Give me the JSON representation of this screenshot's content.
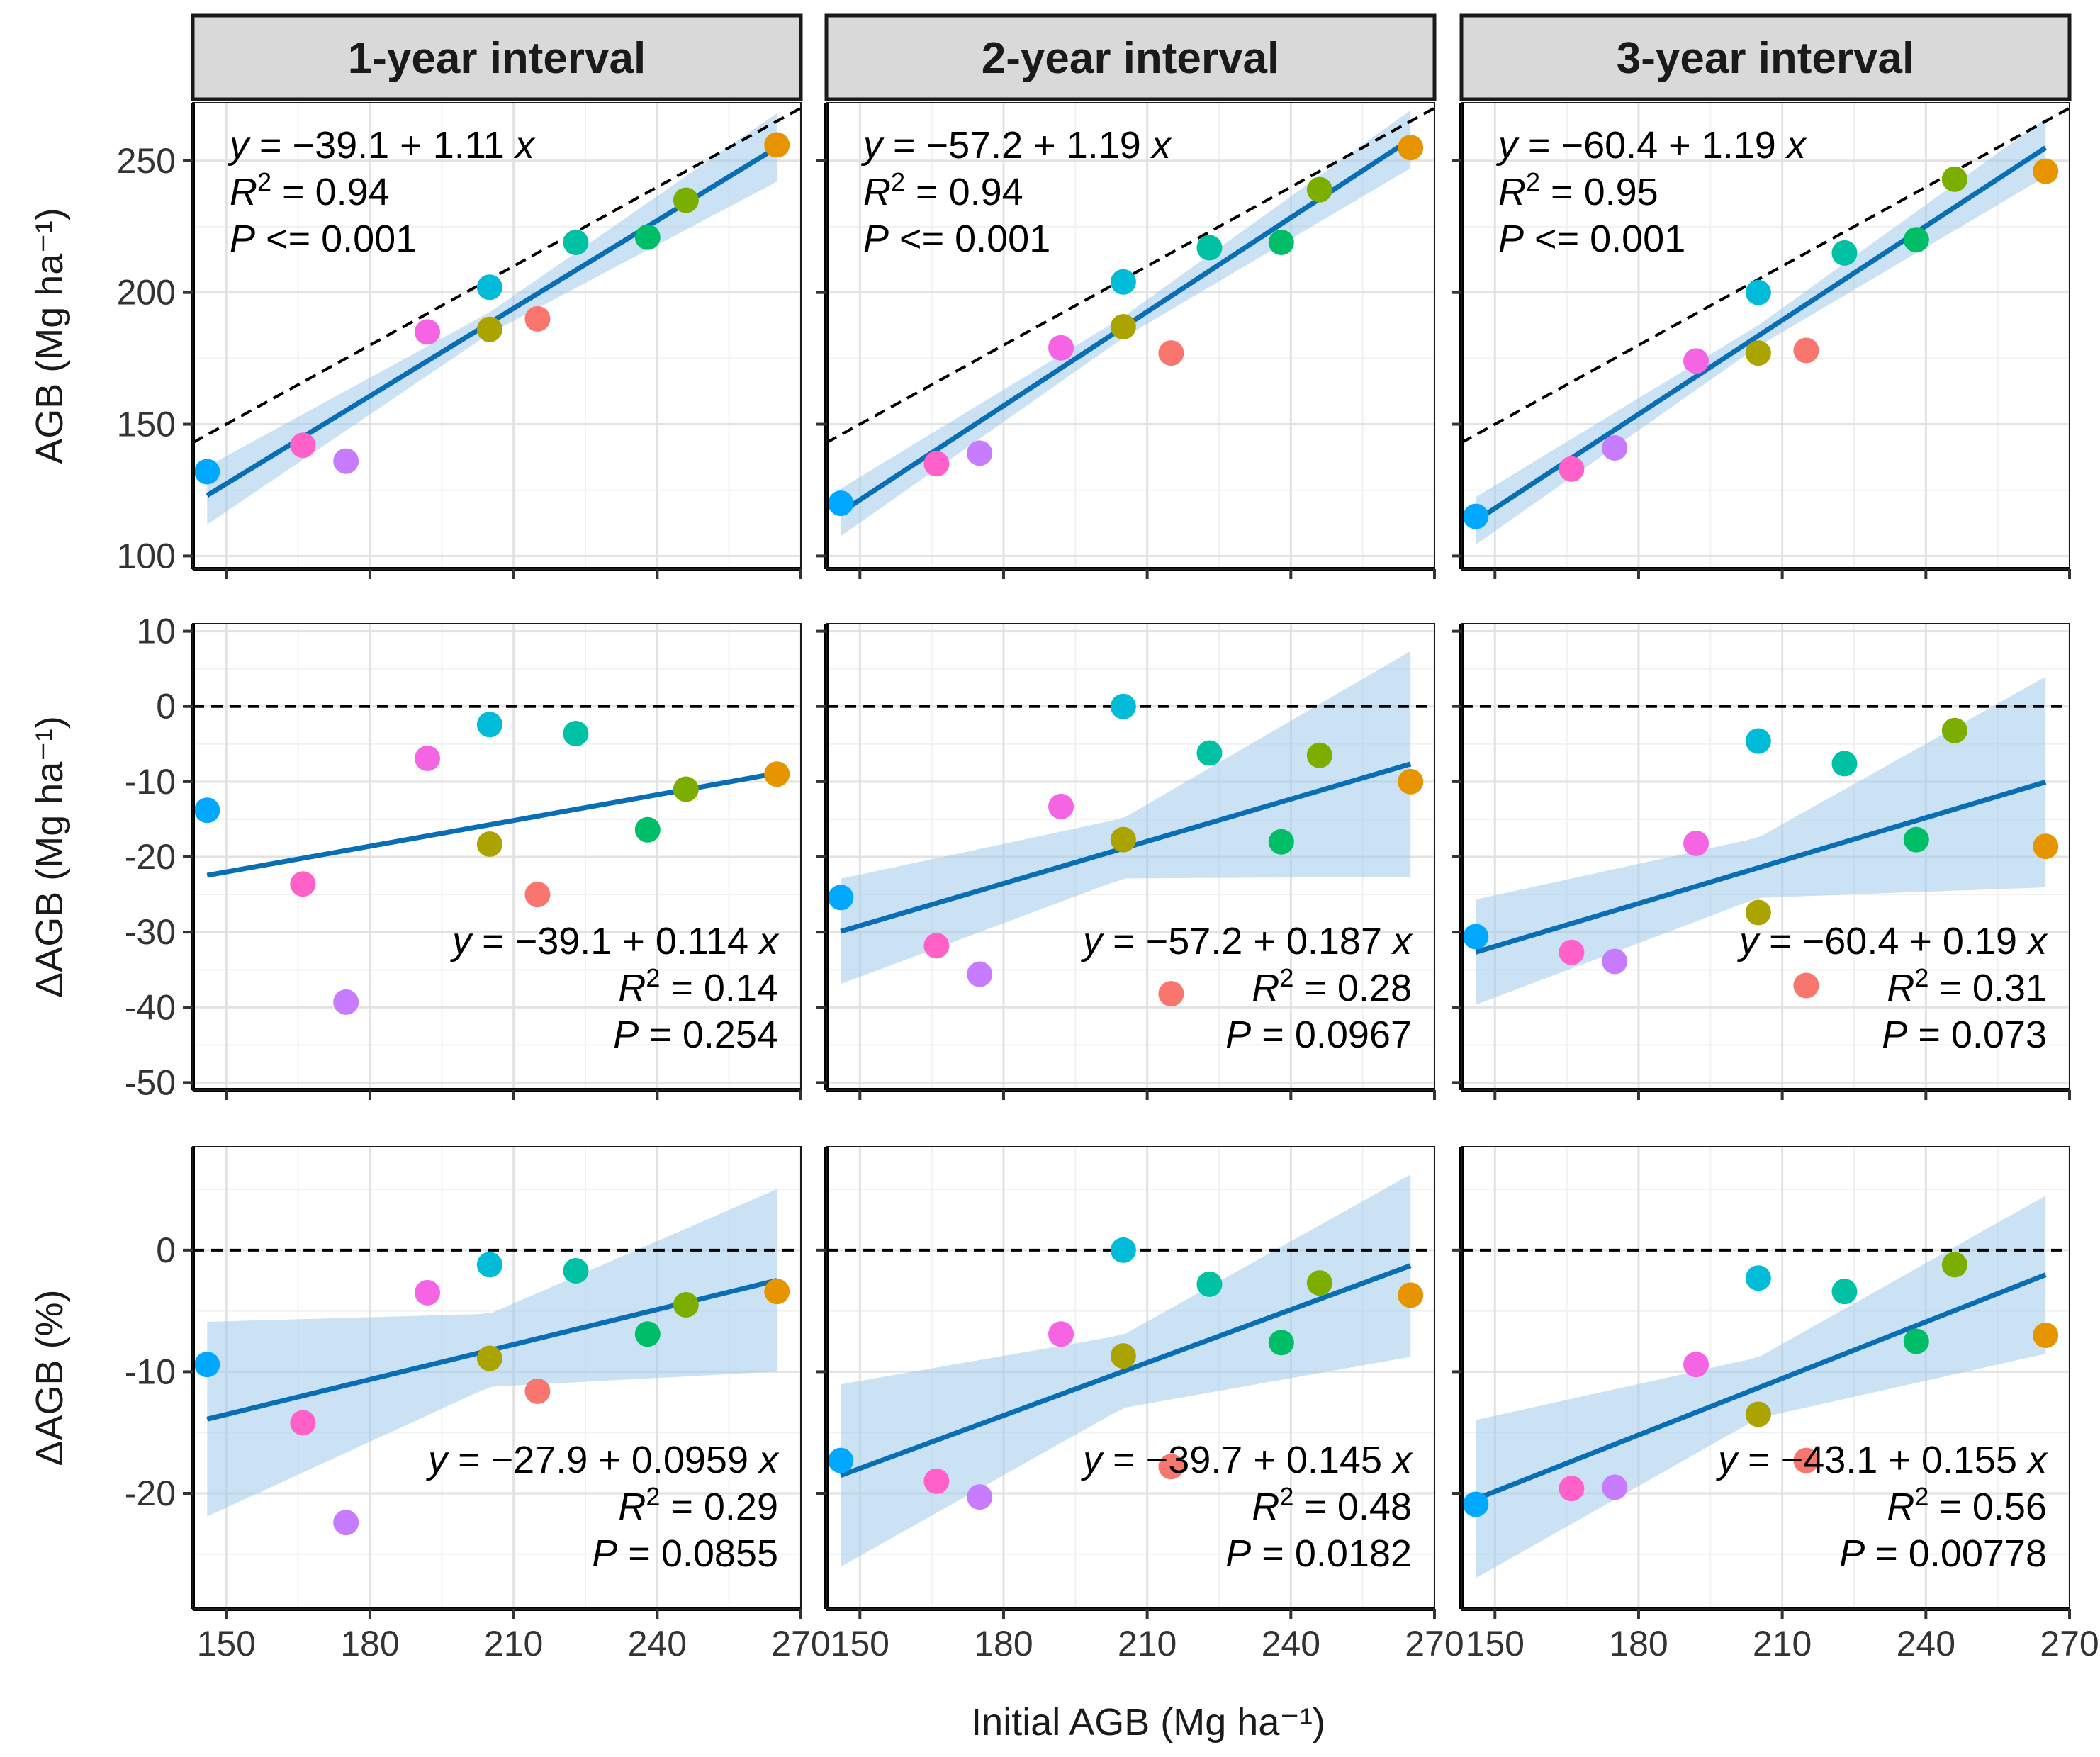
{
  "chart_data": {
    "type": "scatter",
    "layout": "facet grid, 3 rows x 3 columns",
    "facets": [
      "1-year interval",
      "2-year interval",
      "3-year interval"
    ],
    "xlabel": "Initial AGB (Mg ha⁻¹)",
    "xlim": [
      143,
      270
    ],
    "xticks": [
      150,
      180,
      210,
      240,
      270
    ],
    "x": [
      146,
      166,
      175,
      192,
      205,
      205,
      215,
      223,
      238,
      246,
      265
    ],
    "point_colors": [
      "#00A9FF",
      "#FF61C9",
      "#C77CFF",
      "#F564E3",
      "#00BCD8",
      "#ABA300",
      "#F8766D",
      "#00C1A3",
      "#00BE67",
      "#7CAE00",
      "#E69500"
    ],
    "fit_color": "#0A6EB4",
    "band_color": "#9ECAE9",
    "rows": [
      {
        "ylabel": "AGB (Mg ha⁻¹)",
        "ylim": [
          95,
          272
        ],
        "yticks": [
          100,
          150,
          200,
          250
        ],
        "reference_line": "1:1",
        "panels": [
          {
            "y": [
              132,
              142,
              136,
              185,
              202,
              186,
              190,
              219,
              221,
              235,
              256
            ],
            "intercept": -39.1,
            "slope": 1.11,
            "band": [
              [
                146,
                11,
                11
              ],
              [
                205,
                4,
                4
              ],
              [
                265,
                13,
                13
              ]
            ],
            "eq": "y = −39.1 + 1.11 x",
            "r2": "= 0.94",
            "p": "<= 0.001"
          },
          {
            "y": [
              120,
              135,
              139,
              179,
              204,
              187,
              177,
              217,
              219,
              239,
              255
            ],
            "intercept": -57.2,
            "slope": 1.19,
            "band": [
              [
                146,
                9,
                9
              ],
              [
                205,
                4,
                4
              ],
              [
                265,
                11,
                11
              ]
            ],
            "eq": "y = −57.2 + 1.19 x",
            "r2": "= 0.94",
            "p": "<= 0.001"
          },
          {
            "y": [
              115,
              133,
              141,
              174,
              200,
              177,
              178,
              215,
              220,
              243,
              246
            ],
            "intercept": -60.4,
            "slope": 1.19,
            "band": [
              [
                146,
                9,
                9
              ],
              [
                205,
                4,
                4
              ],
              [
                265,
                11,
                11
              ]
            ],
            "eq": "y = −60.4 + 1.19 x",
            "r2": "= 0.95",
            "p": "<= 0.001"
          }
        ]
      },
      {
        "ylabel": "ΔAGB (Mg ha⁻¹)",
        "ylim": [
          -51,
          11
        ],
        "yticks": [
          -50,
          -40,
          -30,
          -20,
          -10,
          0,
          10
        ],
        "reference_line": "y = 0",
        "panels": [
          {
            "y": [
              -13.8,
              -23.6,
              -39.3,
              -6.9,
              -2.4,
              -18.3,
              -25.0,
              -3.6,
              -16.4,
              -11.0,
              -9.0
            ],
            "intercept": -39.1,
            "slope": 0.114,
            "band": [],
            "eq": "y = −39.1 + 0.114 x",
            "r2": "= 0.14",
            "p": "= 0.254"
          },
          {
            "y": [
              -25.4,
              -31.8,
              -35.6,
              -13.3,
              0.0,
              -17.7,
              -38.2,
              -6.2,
              -18.0,
              -6.5,
              -10.0
            ],
            "intercept": -57.2,
            "slope": 0.187,
            "band": [
              [
                146,
                7,
                7
              ],
              [
                205,
                4,
                4
              ],
              [
                265,
                15,
                15
              ]
            ],
            "eq": "y = −57.2 + 0.187 x",
            "r2": "= 0.28",
            "p": "= 0.0967"
          },
          {
            "y": [
              -30.6,
              -32.7,
              -33.9,
              -18.2,
              -4.6,
              -27.4,
              -37.1,
              -7.6,
              -17.7,
              -3.2,
              -18.6
            ],
            "intercept": -60.4,
            "slope": 0.19,
            "band": [
              [
                146,
                7,
                7
              ],
              [
                205,
                4,
                4
              ],
              [
                265,
                14,
                14
              ]
            ],
            "eq": "y = −60.4 + 0.19 x",
            "r2": "= 0.31",
            "p": "= 0.073"
          }
        ]
      },
      {
        "ylabel": "ΔAGB (%)",
        "ylim": [
          -29.5,
          8.5
        ],
        "yticks": [
          -20,
          -10,
          0
        ],
        "reference_line": "y = 0",
        "panels": [
          {
            "y": [
              -9.4,
              -14.2,
              -22.4,
              -3.5,
              -1.2,
              -8.9,
              -11.6,
              -1.7,
              -6.9,
              -4.5,
              -3.4
            ],
            "intercept": -27.9,
            "slope": 0.0959,
            "band": [
              [
                146,
                8,
                8
              ],
              [
                205,
                3,
                3
              ],
              [
                265,
                7.5,
                7.5
              ]
            ],
            "eq": "y = −27.9 + 0.0959 x",
            "r2": "= 0.29",
            "p": "= 0.0855"
          },
          {
            "y": [
              -17.3,
              -19.0,
              -20.3,
              -6.9,
              0.0,
              -8.7,
              -17.8,
              -2.8,
              -7.6,
              -2.7,
              -3.7
            ],
            "intercept": -39.7,
            "slope": 0.145,
            "band": [
              [
                146,
                7.5,
                7.5
              ],
              [
                205,
                3,
                3
              ],
              [
                265,
                7.5,
                7.5
              ]
            ],
            "eq": "y = −39.7 + 0.145 x",
            "r2": "= 0.48",
            "p": "= 0.0182"
          },
          {
            "y": [
              -20.9,
              -19.6,
              -19.5,
              -9.4,
              -2.3,
              -13.5,
              -17.3,
              -3.4,
              -7.5,
              -1.2,
              -7.0
            ],
            "intercept": -43.1,
            "slope": 0.155,
            "band": [
              [
                146,
                6.5,
                6.5
              ],
              [
                205,
                2.5,
                2.5
              ],
              [
                265,
                6.5,
                6.5
              ]
            ],
            "eq": "y = −43.1 + 0.155 x",
            "r2": "= 0.56",
            "p": "= 0.00778"
          }
        ]
      }
    ]
  }
}
